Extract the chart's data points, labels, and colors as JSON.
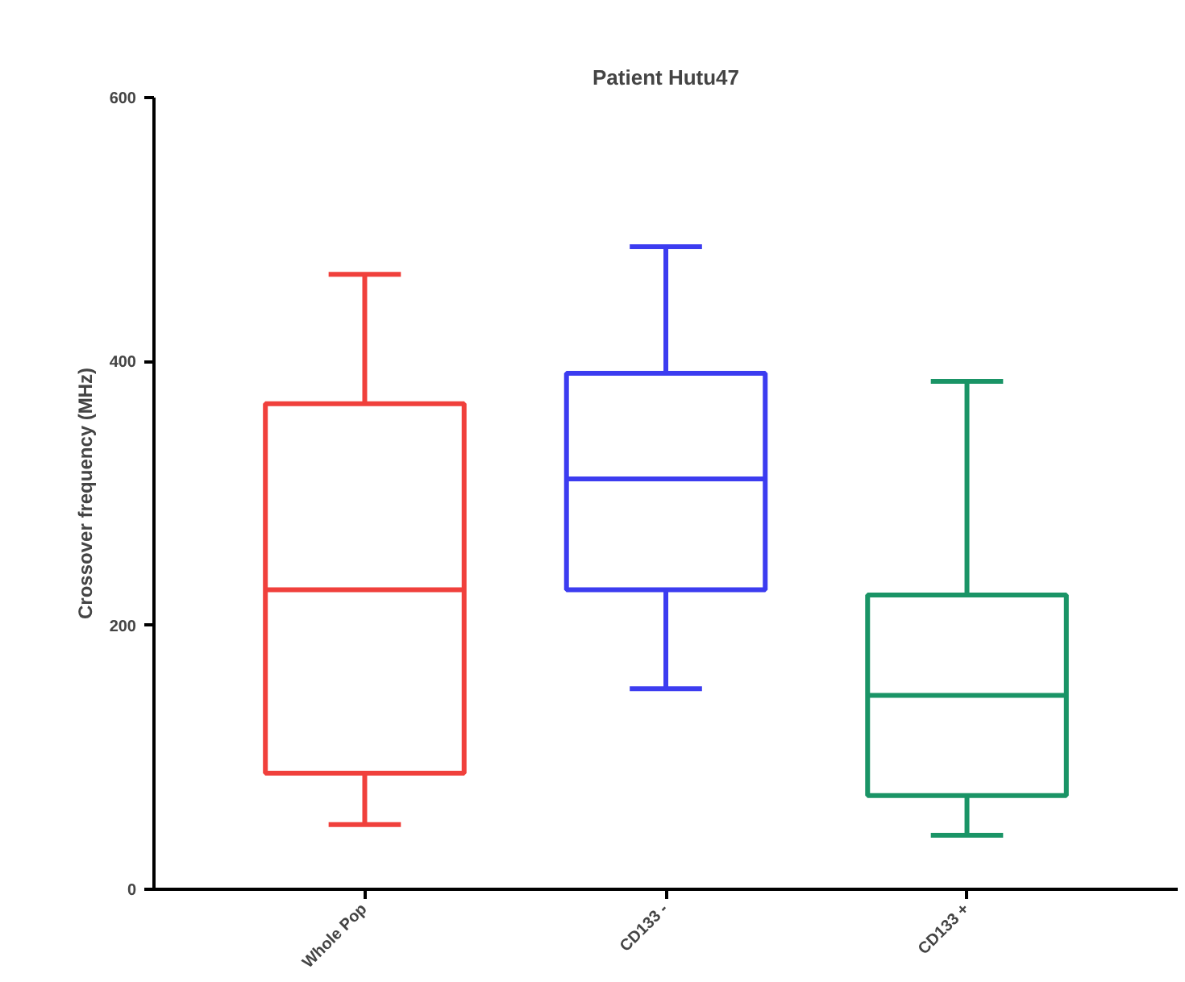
{
  "chart_data": {
    "type": "box",
    "title": "Patient Hutu47",
    "ylabel": "Crossover frequency (MHz)",
    "categories": [
      "Whole Pop",
      "CD133 -",
      "CD133 +"
    ],
    "colors": [
      "#f0403c",
      "#3c3cf0",
      "#1a9466"
    ],
    "boxes": [
      {
        "low": 49,
        "q1": 88,
        "median": 227,
        "q3": 368,
        "high": 466
      },
      {
        "low": 152,
        "q1": 227,
        "median": 311,
        "q3": 391,
        "high": 487
      },
      {
        "low": 41,
        "q1": 71,
        "median": 147,
        "q3": 223,
        "high": 385
      }
    ],
    "ylim": [
      0,
      600
    ],
    "yticks": [
      0,
      200,
      400,
      600
    ],
    "grid": false
  }
}
